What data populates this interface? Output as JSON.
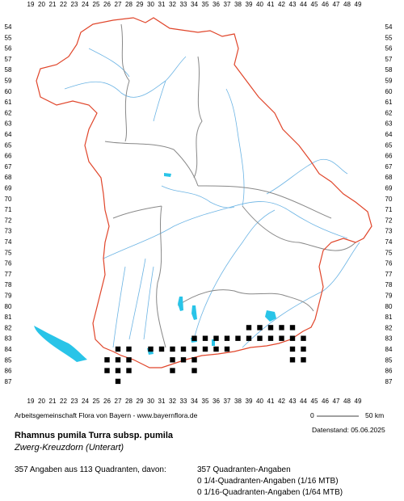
{
  "map": {
    "x_labels": [
      "19",
      "20",
      "21",
      "22",
      "23",
      "24",
      "25",
      "26",
      "27",
      "28",
      "29",
      "30",
      "31",
      "32",
      "33",
      "34",
      "35",
      "36",
      "37",
      "38",
      "39",
      "40",
      "41",
      "42",
      "43",
      "44",
      "45",
      "46",
      "47",
      "48",
      "49"
    ],
    "y_labels": [
      "54",
      "55",
      "56",
      "57",
      "58",
      "59",
      "60",
      "61",
      "62",
      "63",
      "64",
      "65",
      "66",
      "67",
      "68",
      "69",
      "70",
      "71",
      "72",
      "73",
      "74",
      "75",
      "76",
      "77",
      "78",
      "79",
      "80",
      "81",
      "82",
      "83",
      "84",
      "85",
      "86",
      "87"
    ],
    "border_color": "#e0452a",
    "region_color": "#888888",
    "river_color": "#6cb4e4",
    "lake_color": "#29c4e8",
    "dot_color": "#000000",
    "occurrences": [
      [
        39,
        82
      ],
      [
        40,
        82
      ],
      [
        41,
        82
      ],
      [
        42,
        82
      ],
      [
        43,
        82
      ],
      [
        34,
        83
      ],
      [
        35,
        83
      ],
      [
        36,
        83
      ],
      [
        37,
        83
      ],
      [
        38,
        83
      ],
      [
        39,
        83
      ],
      [
        40,
        83
      ],
      [
        41,
        83
      ],
      [
        42,
        83
      ],
      [
        43,
        83
      ],
      [
        44,
        83
      ],
      [
        27,
        84
      ],
      [
        28,
        84
      ],
      [
        30,
        84
      ],
      [
        31,
        84
      ],
      [
        32,
        84
      ],
      [
        33,
        84
      ],
      [
        34,
        84
      ],
      [
        35,
        84
      ],
      [
        36,
        84
      ],
      [
        37,
        84
      ],
      [
        43,
        84
      ],
      [
        44,
        84
      ],
      [
        26,
        85
      ],
      [
        27,
        85
      ],
      [
        28,
        85
      ],
      [
        32,
        85
      ],
      [
        33,
        85
      ],
      [
        34,
        85
      ],
      [
        43,
        85
      ],
      [
        44,
        85
      ],
      [
        26,
        86
      ],
      [
        27,
        86
      ],
      [
        28,
        86
      ],
      [
        32,
        86
      ],
      [
        34,
        86
      ],
      [
        27,
        87
      ]
    ]
  },
  "footer": {
    "source": "Arbeitsgemeinschaft Flora von Bayern - www.bayernflora.de",
    "scale_zero": "0",
    "scale_end": "50 km",
    "date": "Datenstand: 05.06.2025"
  },
  "species": {
    "scientific": "Rhamnus pumila Turra subsp. pumila",
    "common": "Zwerg-Kreuzdorn (Unterart)"
  },
  "stats": {
    "summary": "357 Angaben aus 113 Quadranten, davon:",
    "line1": "357 Quadranten-Angaben",
    "line2": "0 1/4-Quadranten-Angaben (1/16 MTB)",
    "line3": "0 1/16-Quadranten-Angaben (1/64 MTB)"
  }
}
